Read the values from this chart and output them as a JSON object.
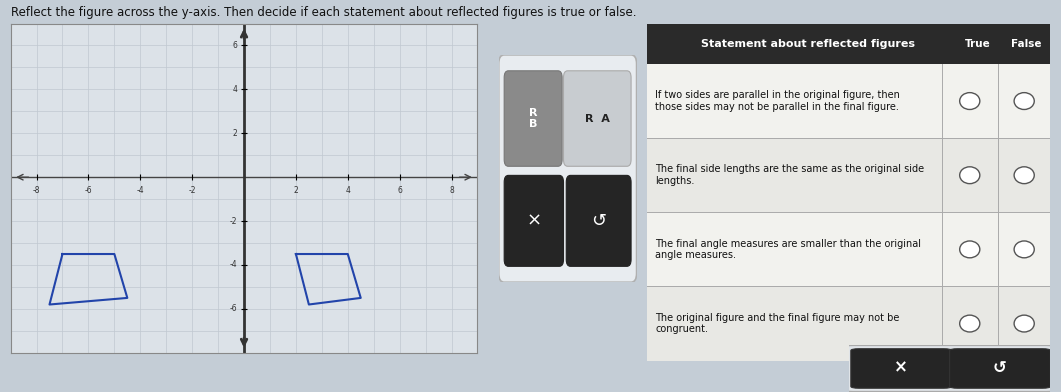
{
  "title": "Reflect the figure across the y-axis. Then decide if each statement about reflected figures is true or false.",
  "bg_color": "#c4cdd6",
  "grid_bg": "#dce2e8",
  "grid_line_color": "#c0c8d0",
  "white_panel_bg": "#e8ecf0",
  "header_bg": "#2a2a2a",
  "header_text": "Statement about reflected figures",
  "col_true": "True",
  "col_false": "False",
  "row_colors": [
    "#f2f2ee",
    "#e8e8e4",
    "#f2f2ee",
    "#e8e8e4"
  ],
  "statements": [
    "If two sides are parallel in the original figure, then\nthose sides may not be parallel in the final figure.",
    "The final side lengths are the same as the original side\nlengths.",
    "The final angle measures are smaller than the original\nangle measures.",
    "The original figure and the final figure may not be\ncongruent."
  ],
  "orig_shape": [
    [
      -7,
      -3.5
    ],
    [
      -5,
      -3.5
    ],
    [
      -4.5,
      -5.5
    ],
    [
      -7.5,
      -5.8
    ]
  ],
  "refl_shape": [
    [
      2,
      -3.5
    ],
    [
      4,
      -3.5
    ],
    [
      4.5,
      -5.5
    ],
    [
      2.5,
      -5.8
    ]
  ],
  "axis_range": [
    -9,
    9,
    -8,
    7
  ],
  "x_ticks": [
    -8,
    -6,
    -4,
    -2,
    2,
    4,
    6,
    8
  ],
  "y_ticks": [
    2,
    4,
    6,
    -2,
    -4,
    -6
  ],
  "button_label_x": "×",
  "button_label_undo": "↺",
  "drag_rb_label": "R\nB",
  "drag_ra_label": "R  A",
  "drag_rb_color": "#8a8a8a",
  "drag_ra_color": "#c8ccd0",
  "btn_dark": "#252525"
}
